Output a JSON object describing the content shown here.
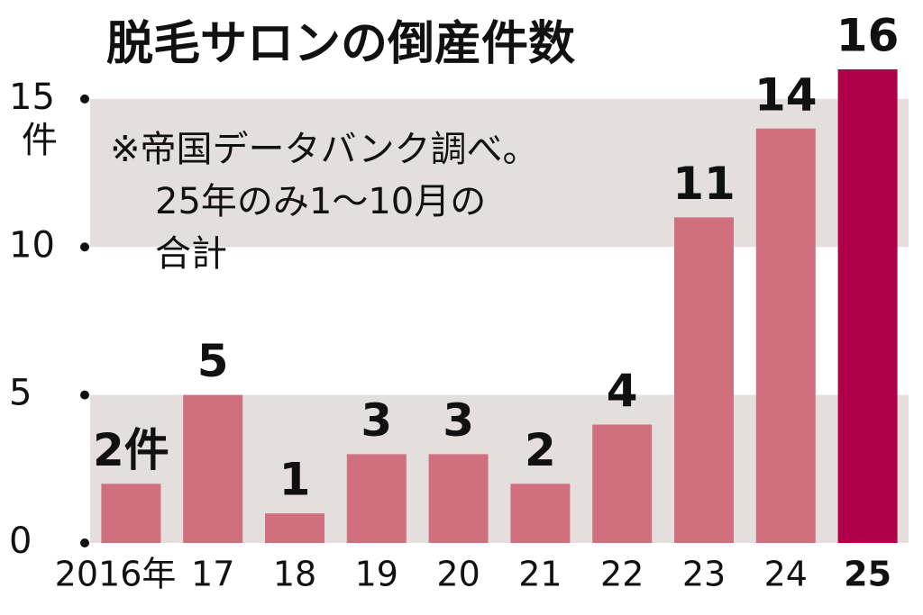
{
  "chart_data": {
    "type": "bar",
    "title": "脱毛サロンの倒産件数",
    "y_unit": "件",
    "note": [
      "※帝国データバンク調べ。",
      "25年のみ1〜10月の",
      "合計"
    ],
    "categories": [
      "2016年",
      "17",
      "18",
      "19",
      "20",
      "21",
      "22",
      "23",
      "24",
      "25"
    ],
    "values": [
      2,
      5,
      1,
      3,
      3,
      2,
      4,
      11,
      14,
      16
    ],
    "value_labels": [
      "2件",
      "5",
      "1",
      "3",
      "3",
      "2",
      "4",
      "11",
      "14",
      "16"
    ],
    "colors": [
      "#d0707e",
      "#d0707e",
      "#d0707e",
      "#d0707e",
      "#d0707e",
      "#d0707e",
      "#d0707e",
      "#d0707e",
      "#d0707e",
      "#b0004a"
    ],
    "ylim": [
      0,
      16
    ],
    "yticks": [
      0,
      5,
      10,
      15
    ],
    "bands": true,
    "band_color": "#e4dfdc"
  }
}
